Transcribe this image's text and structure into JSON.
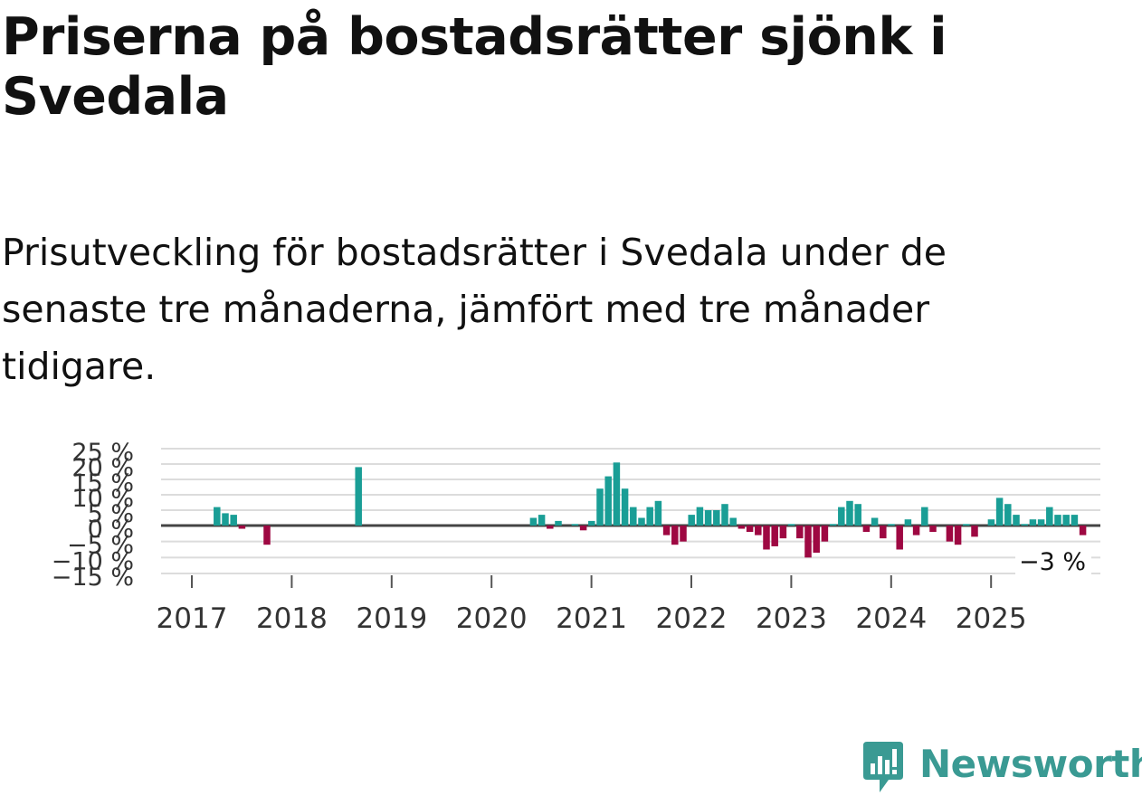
{
  "title": "Priserna på bostadsrätter sjönk i Svedala",
  "subtitle": "Prisutveckling för bostadsrätter i Svedala under de senaste tre månaderna, jämfört med tre månader tidigare.",
  "brand": {
    "name": "Newsworthy",
    "color": "#3a9a93"
  },
  "chart_data": {
    "type": "bar",
    "title": "Priserna på bostadsrätter sjönk i Svedala",
    "xlabel": "",
    "ylabel": "",
    "ylim": [
      -15,
      25
    ],
    "y_ticks": [
      25,
      20,
      15,
      10,
      5,
      0,
      -5,
      -10,
      -15
    ],
    "y_tick_labels": [
      "25 %",
      "20 %",
      "15 %",
      "10 %",
      "5 %",
      "0 %",
      "−5 %",
      "−10 %",
      "−15 %"
    ],
    "x_tick_labels": [
      "2017",
      "2018",
      "2019",
      "2020",
      "2021",
      "2022",
      "2023",
      "2024",
      "2025"
    ],
    "start": {
      "year": 2017,
      "month": 1
    },
    "positive_color": "#1a9e96",
    "negative_color": "#9e0842",
    "last_value_label": "−3 %",
    "values": [
      0,
      6,
      4,
      3.5,
      -1,
      0,
      0,
      -6,
      0,
      0,
      0,
      0,
      0,
      0,
      0,
      0,
      0,
      0,
      19,
      0,
      0,
      0,
      0,
      0,
      0,
      0,
      0,
      0,
      0,
      0,
      0,
      0,
      0,
      0,
      0,
      0,
      0,
      0,
      0,
      2.5,
      3.5,
      -1,
      1.5,
      0,
      0.5,
      -1.5,
      1.5,
      12,
      16,
      20.5,
      12,
      6,
      2.5,
      6,
      8,
      -3,
      -6,
      -5,
      3.5,
      6,
      5,
      5,
      7,
      2.5,
      -1,
      -2,
      -3,
      -7.5,
      -6.5,
      -4,
      0.5,
      -4,
      -10,
      -8.5,
      -5,
      0.5,
      6,
      8,
      7,
      -2,
      2.5,
      -4,
      0.5,
      -7.5,
      2,
      -3,
      6,
      -2,
      0,
      -5,
      -6,
      0.5,
      -3.5,
      0,
      2,
      9,
      7,
      3.5,
      0.5,
      2,
      2,
      6,
      3.5,
      3.5,
      3.5,
      -3
    ]
  }
}
